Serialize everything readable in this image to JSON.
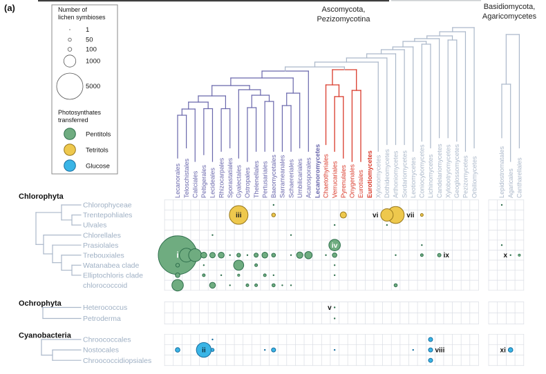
{
  "panel_label": "(a)",
  "headers": {
    "asco1": "Ascomycota,",
    "asco2": "Pezizomycotina",
    "basidio1": "Basidiomycota,",
    "basidio2": "Agaricomycetes"
  },
  "legend": {
    "size_title1": "Number of",
    "size_title2": "lichen symbioses",
    "sizes": [
      {
        "value": "1",
        "r": 0.7
      },
      {
        "value": "50",
        "r": 2.3
      },
      {
        "value": "100",
        "r": 2.8
      },
      {
        "value": "1000",
        "r": 8.7
      },
      {
        "value": "5000",
        "r": 19
      }
    ],
    "photo_title1": "Photosynthates",
    "photo_title2": "transferred",
    "photosynthates": [
      {
        "label": "Pentitols",
        "key": "pentitols"
      },
      {
        "label": "Tetritols",
        "key": "tetritols"
      },
      {
        "label": "Glucose",
        "key": "glucose"
      }
    ]
  },
  "colors": {
    "pentitols_fill": "#6fac80",
    "pentitols_stroke": "#2e6e4c",
    "tetritols_fill": "#eec84d",
    "tetritols_stroke": "#96761b",
    "glucose_fill": "#3ab5e6",
    "glucose_stroke": "#176d9e",
    "lecanoromycetes": "#6866ab",
    "eurotiomycetes": "#d93a2b",
    "other_classes": "#aab7c9",
    "row_labels": "#9fb0c4",
    "grid": "#dadde4",
    "text": "#1a1a1a"
  },
  "class_labels": [
    {
      "label": "Lecanoromycetes",
      "group": "lecanoromycetes"
    },
    {
      "label": "Eurotiomycetes",
      "group": "eurotiomycetes"
    }
  ],
  "fungal_columns": [
    {
      "label": "Lecanorales",
      "group": "lecanoromycetes",
      "section": "asco"
    },
    {
      "label": "Teloschistales",
      "group": "lecanoromycetes",
      "section": "asco"
    },
    {
      "label": "Caliciales",
      "group": "lecanoromycetes",
      "section": "asco"
    },
    {
      "label": "Peltigerales",
      "group": "lecanoromycetes",
      "section": "asco"
    },
    {
      "label": "Lecideales",
      "group": "lecanoromycetes",
      "section": "asco"
    },
    {
      "label": "Rhizocarpales",
      "group": "lecanoromycetes",
      "section": "asco"
    },
    {
      "label": "Sporastatiales",
      "group": "lecanoromycetes",
      "section": "asco"
    },
    {
      "label": "Gyalectales",
      "group": "lecanoromycetes",
      "section": "asco"
    },
    {
      "label": "Ostropales",
      "group": "lecanoromycetes",
      "section": "asco"
    },
    {
      "label": "Thelenellales",
      "group": "lecanoromycetes",
      "section": "asco"
    },
    {
      "label": "Pertusariales",
      "group": "lecanoromycetes",
      "section": "asco"
    },
    {
      "label": "Baeomycetales",
      "group": "lecanoromycetes",
      "section": "asco"
    },
    {
      "label": "Sarrameanales",
      "group": "lecanoromycetes",
      "section": "asco"
    },
    {
      "label": "Schaereriales",
      "group": "lecanoromycetes",
      "section": "asco"
    },
    {
      "label": "Umbilicariales",
      "group": "lecanoromycetes",
      "section": "asco"
    },
    {
      "label": "Acarosporales",
      "group": "lecanoromycetes",
      "section": "asco"
    },
    {
      "label": "Chaetothyriales",
      "group": "eurotiomycetes",
      "section": "asco"
    },
    {
      "label": "Verrucariales",
      "group": "eurotiomycetes",
      "section": "asco"
    },
    {
      "label": "Pyrenulales",
      "group": "eurotiomycetes",
      "section": "asco"
    },
    {
      "label": "Onygenales",
      "group": "eurotiomycetes",
      "section": "asco"
    },
    {
      "label": "Eurotiales",
      "group": "eurotiomycetes",
      "section": "asco"
    },
    {
      "label": "Xylonomycetes",
      "group": "other",
      "section": "asco"
    },
    {
      "label": "Dothideomycetes",
      "group": "other",
      "section": "asco"
    },
    {
      "label": "Arthoniomycetes",
      "group": "other",
      "section": "asco"
    },
    {
      "label": "Sordariomycetes",
      "group": "other",
      "section": "asco"
    },
    {
      "label": "Leotiomycetes",
      "group": "other",
      "section": "asco"
    },
    {
      "label": "Coniocybomycetes",
      "group": "other",
      "section": "asco"
    },
    {
      "label": "Lichinomycetes",
      "group": "other",
      "section": "asco"
    },
    {
      "label": "Candelariomycetes",
      "group": "other",
      "section": "asco"
    },
    {
      "label": "Xylobotryomycetes",
      "group": "other",
      "section": "asco"
    },
    {
      "label": "Geoglossomycetes",
      "group": "other",
      "section": "asco"
    },
    {
      "label": "Pezizomycetes",
      "group": "other",
      "section": "asco"
    },
    {
      "label": "Orbiliomycetes",
      "group": "other",
      "section": "asco"
    },
    {
      "label": "Lepidostromatales",
      "group": "other",
      "section": "basidio"
    },
    {
      "label": "Agaricales",
      "group": "other",
      "section": "basidio"
    },
    {
      "label": "Cantharellales",
      "group": "other",
      "section": "basidio"
    }
  ],
  "algal_groups": [
    {
      "name": "Chlorophyta",
      "rows": [
        "Chlorophyceae",
        "Trentepohliales",
        "Ulvales",
        "Chlorellales",
        "Prasiolales",
        "Trebouxiales",
        "Watanabea clade",
        "Elliptochloris clade",
        "chlorococcoid"
      ]
    },
    {
      "name": "Ochrophyta",
      "rows": [
        "Heterococcus",
        "Petroderma"
      ]
    },
    {
      "name": "Cyanobacteria",
      "rows": [
        "Chroococcales",
        "Nostocales",
        "Chroococcidiopsiales"
      ]
    }
  ],
  "chart_data": {
    "type": "bubble-matrix",
    "note": "n = approximate number of lichen symbioses (area-scaled per legend); r = bubble radius px; numerals i-xi annotate highlighted symbioses",
    "bubbles": [
      {
        "fungus": "Baeomycetales",
        "alga": "Chlorophyceae",
        "photosynthate": "pentitols",
        "n": 20,
        "r": 1.2
      },
      {
        "fungus": "Lepidostromatales",
        "alga": "Chlorophyceae",
        "photosynthate": "pentitols",
        "n": 20,
        "r": 1.2
      },
      {
        "fungus": "Gyalectales",
        "alga": "Trentepohliales",
        "photosynthate": "tetritols",
        "n": 2500,
        "r": 13.5,
        "numeral": "iii",
        "side": "c"
      },
      {
        "fungus": "Baeomycetales",
        "alga": "Trentepohliales",
        "photosynthate": "tetritols",
        "n": 100,
        "r": 2.7
      },
      {
        "fungus": "Pyrenulales",
        "alga": "Trentepohliales",
        "photosynthate": "tetritols",
        "n": 280,
        "r": 4.5
      },
      {
        "fungus": "Dothideomycetes",
        "alga": "Trentepohliales",
        "photosynthate": "tetritols",
        "n": 1100,
        "r": 9,
        "numeral": "vi",
        "side": "l"
      },
      {
        "fungus": "Arthoniomycetes",
        "alga": "Trentepohliales",
        "photosynthate": "tetritols",
        "n": 2100,
        "r": 12.3,
        "numeral": "vii",
        "side": "r"
      },
      {
        "fungus": "Coniocybomycetes",
        "alga": "Trentepohliales",
        "photosynthate": "tetritols",
        "n": 50,
        "r": 2
      },
      {
        "fungus": "Verrucariales",
        "alga": "Ulvales",
        "photosynthate": "pentitols",
        "n": 20,
        "r": 1.2
      },
      {
        "fungus": "Dothideomycetes",
        "alga": "Ulvales",
        "photosynthate": "pentitols",
        "n": 20,
        "r": 1.2
      },
      {
        "fungus": "Lecideales",
        "alga": "Chlorellales",
        "photosynthate": "pentitols",
        "n": 25,
        "r": 1.3
      },
      {
        "fungus": "Schaereriales",
        "alga": "Chlorellales",
        "photosynthate": "pentitols",
        "n": 20,
        "r": 1.2
      },
      {
        "fungus": "Verrucariales",
        "alga": "Prasiolales",
        "photosynthate": "pentitols",
        "n": 950,
        "r": 8.3,
        "numeral": "iv",
        "side": "c"
      },
      {
        "fungus": "Coniocybomycetes",
        "alga": "Prasiolales",
        "photosynthate": "pentitols",
        "n": 25,
        "r": 1.3
      },
      {
        "fungus": "Lepidostromatales",
        "alga": "Prasiolales",
        "photosynthate": "pentitols",
        "n": 20,
        "r": 1.2
      },
      {
        "fungus": "Lecanorales",
        "alga": "Trebouxiales",
        "photosynthate": "pentitols",
        "n": 10000,
        "r": 28,
        "numeral": "i",
        "side": "c"
      },
      {
        "fungus": "Teloschistales",
        "alga": "Trebouxiales",
        "photosynthate": "pentitols",
        "n": 1400,
        "r": 10
      },
      {
        "fungus": "Caliciales",
        "alga": "Trebouxiales",
        "photosynthate": "pentitols",
        "n": 1200,
        "r": 9.3
      },
      {
        "fungus": "Peltigerales",
        "alga": "Trebouxiales",
        "photosynthate": "pentitols",
        "n": 250,
        "r": 4.3
      },
      {
        "fungus": "Lecideales",
        "alga": "Trebouxiales",
        "photosynthate": "pentitols",
        "n": 220,
        "r": 4
      },
      {
        "fungus": "Rhizocarpales",
        "alga": "Trebouxiales",
        "photosynthate": "pentitols",
        "n": 250,
        "r": 4.3
      },
      {
        "fungus": "Sporastatiales",
        "alga": "Trebouxiales",
        "photosynthate": "pentitols",
        "n": 25,
        "r": 1.3
      },
      {
        "fungus": "Gyalectales",
        "alga": "Trebouxiales",
        "photosynthate": "pentitols",
        "n": 100,
        "r": 2.7
      },
      {
        "fungus": "Ostropales",
        "alga": "Trebouxiales",
        "photosynthate": "pentitols",
        "n": 20,
        "r": 1.2
      },
      {
        "fungus": "Thelenellales",
        "alga": "Trebouxiales",
        "photosynthate": "pentitols",
        "n": 120,
        "r": 3
      },
      {
        "fungus": "Pertusariales",
        "alga": "Trebouxiales",
        "photosynthate": "pentitols",
        "n": 240,
        "r": 4.2
      },
      {
        "fungus": "Baeomycetales",
        "alga": "Trebouxiales",
        "photosynthate": "pentitols",
        "n": 110,
        "r": 2.8
      },
      {
        "fungus": "Schaereriales",
        "alga": "Trebouxiales",
        "photosynthate": "pentitols",
        "n": 20,
        "r": 1.2
      },
      {
        "fungus": "Umbilicariales",
        "alga": "Trebouxiales",
        "photosynthate": "pentitols",
        "n": 290,
        "r": 4.6
      },
      {
        "fungus": "Acarosporales",
        "alga": "Trebouxiales",
        "photosynthate": "pentitols",
        "n": 390,
        "r": 5.3
      },
      {
        "fungus": "Chaetothyriales",
        "alga": "Trebouxiales",
        "photosynthate": "pentitols",
        "n": 20,
        "r": 1.2
      },
      {
        "fungus": "Verrucariales",
        "alga": "Trebouxiales",
        "photosynthate": "pentitols",
        "n": 150,
        "r": 3.3
      },
      {
        "fungus": "Arthoniomycetes",
        "alga": "Trebouxiales",
        "photosynthate": "pentitols",
        "n": 20,
        "r": 1.2
      },
      {
        "fungus": "Coniocybomycetes",
        "alga": "Trebouxiales",
        "photosynthate": "pentitols",
        "n": 50,
        "r": 2
      },
      {
        "fungus": "Candelariomycetes",
        "alga": "Trebouxiales",
        "photosynthate": "pentitols",
        "n": 90,
        "r": 2.5,
        "numeral": "ix",
        "side": "r"
      },
      {
        "fungus": "Agaricales",
        "alga": "Trebouxiales",
        "photosynthate": "pentitols",
        "n": 20,
        "r": 1.2,
        "numeral": "x",
        "side": "l"
      },
      {
        "fungus": "Cantharellales",
        "alga": "Trebouxiales",
        "photosynthate": "pentitols",
        "n": 40,
        "r": 1.7
      },
      {
        "fungus": "Lecanorales",
        "alga": "Watanabea clade",
        "photosynthate": "pentitols",
        "n": 100,
        "r": 2.7
      },
      {
        "fungus": "Peltigerales",
        "alga": "Watanabea clade",
        "photosynthate": "pentitols",
        "n": 25,
        "r": 1.3
      },
      {
        "fungus": "Gyalectales",
        "alga": "Watanabea clade",
        "photosynthate": "pentitols",
        "n": 730,
        "r": 7.3
      },
      {
        "fungus": "Thelenellales",
        "alga": "Watanabea clade",
        "photosynthate": "pentitols",
        "n": 50,
        "r": 2
      },
      {
        "fungus": "Verrucariales",
        "alga": "Watanabea clade",
        "photosynthate": "pentitols",
        "n": 20,
        "r": 1.2
      },
      {
        "fungus": "Lecanorales",
        "alga": "Elliptochloris clade",
        "photosynthate": "pentitols",
        "n": 150,
        "r": 3.3
      },
      {
        "fungus": "Peltigerales",
        "alga": "Elliptochloris clade",
        "photosynthate": "pentitols",
        "n": 50,
        "r": 2
      },
      {
        "fungus": "Rhizocarpales",
        "alga": "Elliptochloris clade",
        "photosynthate": "pentitols",
        "n": 20,
        "r": 1.2
      },
      {
        "fungus": "Gyalectales",
        "alga": "Elliptochloris clade",
        "photosynthate": "pentitols",
        "n": 40,
        "r": 1.7
      },
      {
        "fungus": "Pertusariales",
        "alga": "Elliptochloris clade",
        "photosynthate": "pentitols",
        "n": 50,
        "r": 2
      },
      {
        "fungus": "Baeomycetales",
        "alga": "Elliptochloris clade",
        "photosynthate": "pentitols",
        "n": 20,
        "r": 1.2
      },
      {
        "fungus": "Verrucariales",
        "alga": "Elliptochloris clade",
        "photosynthate": "pentitols",
        "n": 20,
        "r": 1.2
      },
      {
        "fungus": "Lecanorales",
        "alga": "chlorococcoid",
        "photosynthate": "pentitols",
        "n": 950,
        "r": 8.3
      },
      {
        "fungus": "Lecideales",
        "alga": "chlorococcoid",
        "photosynthate": "pentitols",
        "n": 250,
        "r": 4.3
      },
      {
        "fungus": "Sporastatiales",
        "alga": "chlorococcoid",
        "photosynthate": "pentitols",
        "n": 20,
        "r": 1.2
      },
      {
        "fungus": "Ostropales",
        "alga": "chlorococcoid",
        "photosynthate": "pentitols",
        "n": 50,
        "r": 2
      },
      {
        "fungus": "Thelenellales",
        "alga": "chlorococcoid",
        "photosynthate": "pentitols",
        "n": 50,
        "r": 2
      },
      {
        "fungus": "Baeomycetales",
        "alga": "chlorococcoid",
        "photosynthate": "pentitols",
        "n": 70,
        "r": 2.3
      },
      {
        "fungus": "Sarrameanales",
        "alga": "chlorococcoid",
        "photosynthate": "pentitols",
        "n": 20,
        "r": 1.2
      },
      {
        "fungus": "Schaereriales",
        "alga": "chlorococcoid",
        "photosynthate": "pentitols",
        "n": 20,
        "r": 1.2
      },
      {
        "fungus": "Arthoniomycetes",
        "alga": "chlorococcoid",
        "photosynthate": "pentitols",
        "n": 70,
        "r": 2.3
      },
      {
        "fungus": "Verrucariales",
        "alga": "Heterococcus",
        "photosynthate": "pentitols",
        "n": 15,
        "r": 1,
        "numeral": "v",
        "side": "l"
      },
      {
        "fungus": "Verrucariales",
        "alga": "Petroderma",
        "photosynthate": "pentitols",
        "n": 15,
        "r": 1
      },
      {
        "fungus": "Lecideales",
        "alga": "Chroococcales",
        "photosynthate": "glucose",
        "n": 20,
        "r": 1.2
      },
      {
        "fungus": "Lichinomycetes",
        "alga": "Chroococcales",
        "photosynthate": "glucose",
        "n": 120,
        "r": 3
      },
      {
        "fungus": "Lecanorales",
        "alga": "Nostocales",
        "photosynthate": "glucose",
        "n": 150,
        "r": 3.3
      },
      {
        "fungus": "Peltigerales",
        "alga": "Nostocales",
        "photosynthate": "glucose",
        "n": 1600,
        "r": 10.7,
        "numeral": "ii",
        "side": "c"
      },
      {
        "fungus": "Lecideales",
        "alga": "Nostocales",
        "photosynthate": "glucose",
        "n": 70,
        "r": 2.3
      },
      {
        "fungus": "Pertusariales",
        "alga": "Nostocales",
        "photosynthate": "glucose",
        "n": 25,
        "r": 1.3
      },
      {
        "fungus": "Baeomycetales",
        "alga": "Nostocales",
        "photosynthate": "glucose",
        "n": 120,
        "r": 3
      },
      {
        "fungus": "Verrucariales",
        "alga": "Nostocales",
        "photosynthate": "glucose",
        "n": 20,
        "r": 1.2
      },
      {
        "fungus": "Leotiomycetes",
        "alga": "Nostocales",
        "photosynthate": "glucose",
        "n": 20,
        "r": 1.2
      },
      {
        "fungus": "Lichinomycetes",
        "alga": "Nostocales",
        "photosynthate": "glucose",
        "n": 120,
        "r": 3,
        "numeral": "viii",
        "side": "r"
      },
      {
        "fungus": "Agaricales",
        "alga": "Nostocales",
        "photosynthate": "glucose",
        "n": 150,
        "r": 3.3,
        "numeral": "xi",
        "side": "l"
      },
      {
        "fungus": "Lichinomycetes",
        "alga": "Chroococcidiopsiales",
        "photosynthate": "glucose",
        "n": 120,
        "r": 3
      }
    ]
  }
}
